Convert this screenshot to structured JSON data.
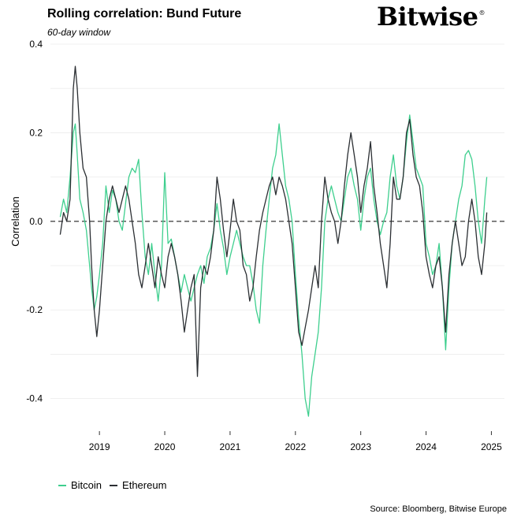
{
  "header": {
    "title": "Rolling correlation: Bund Future",
    "subtitle": "60-day window",
    "brand": "Bitwise",
    "brand_mark": "®"
  },
  "footer": {
    "source": "Source: Bloomberg, Bitwise Europe"
  },
  "colors": {
    "bitcoin": "#3ecf8e",
    "ethereum": "#2b2f33",
    "grid": "#ececec",
    "zero_line": "#222222"
  },
  "chart_data": {
    "type": "line",
    "title": "Rolling correlation: Bund Future",
    "subtitle": "60-day window",
    "ylabel": "Correlation",
    "xlabel": "",
    "ylim": [
      -0.47,
      0.4
    ],
    "xlim": [
      2018.25,
      2025.2
    ],
    "yticks": [
      0.4,
      0.2,
      0.0,
      -0.2,
      -0.4
    ],
    "ytick_labels": [
      "0.4",
      "0.2",
      "0.0",
      "-0.2",
      "-0.4"
    ],
    "xticks": [
      2019,
      2020,
      2021,
      2022,
      2023,
      2024,
      2025
    ],
    "xtick_labels": [
      "2019",
      "2020",
      "2021",
      "2022",
      "2023",
      "2024",
      "2025"
    ],
    "zero_line": true,
    "grid": true,
    "legend": "bottom-left",
    "series": [
      {
        "name": "Bitcoin",
        "color": "#3ecf8e",
        "x": [
          2018.4,
          2018.45,
          2018.5,
          2018.55,
          2018.6,
          2018.63,
          2018.66,
          2018.7,
          2018.75,
          2018.8,
          2018.85,
          2018.88,
          2018.92,
          2018.96,
          2019.0,
          2019.05,
          2019.1,
          2019.15,
          2019.2,
          2019.25,
          2019.3,
          2019.35,
          2019.4,
          2019.45,
          2019.5,
          2019.55,
          2019.6,
          2019.65,
          2019.7,
          2019.75,
          2019.8,
          2019.85,
          2019.9,
          2019.95,
          2020.0,
          2020.05,
          2020.1,
          2020.15,
          2020.2,
          2020.25,
          2020.3,
          2020.35,
          2020.4,
          2020.45,
          2020.5,
          2020.55,
          2020.6,
          2020.65,
          2020.7,
          2020.75,
          2020.8,
          2020.85,
          2020.9,
          2020.95,
          2021.0,
          2021.05,
          2021.1,
          2021.15,
          2021.2,
          2021.25,
          2021.3,
          2021.35,
          2021.4,
          2021.45,
          2021.5,
          2021.55,
          2021.6,
          2021.65,
          2021.7,
          2021.75,
          2021.8,
          2021.85,
          2021.9,
          2021.95,
          2022.0,
          2022.05,
          2022.1,
          2022.15,
          2022.2,
          2022.25,
          2022.3,
          2022.35,
          2022.4,
          2022.45,
          2022.5,
          2022.55,
          2022.6,
          2022.65,
          2022.7,
          2022.75,
          2022.8,
          2022.85,
          2022.9,
          2022.95,
          2023.0,
          2023.05,
          2023.1,
          2023.15,
          2023.2,
          2023.25,
          2023.3,
          2023.35,
          2023.4,
          2023.45,
          2023.5,
          2023.55,
          2023.6,
          2023.65,
          2023.7,
          2023.75,
          2023.8,
          2023.85,
          2023.9,
          2023.95,
          2024.0,
          2024.05,
          2024.1,
          2024.15,
          2024.2,
          2024.25,
          2024.3,
          2024.35,
          2024.4,
          2024.45,
          2024.5,
          2024.55,
          2024.6,
          2024.65,
          2024.7,
          2024.75,
          2024.8,
          2024.85,
          2024.9,
          2024.93
        ],
        "y": [
          0.01,
          0.05,
          0.02,
          0.1,
          0.2,
          0.22,
          0.15,
          0.05,
          0.02,
          -0.02,
          -0.1,
          -0.15,
          -0.2,
          -0.17,
          -0.12,
          -0.05,
          0.08,
          0.02,
          0.07,
          0.05,
          0.0,
          -0.02,
          0.04,
          0.1,
          0.12,
          0.11,
          0.14,
          0.02,
          -0.08,
          -0.12,
          -0.05,
          -0.12,
          -0.18,
          -0.1,
          0.11,
          -0.05,
          -0.04,
          -0.08,
          -0.12,
          -0.16,
          -0.12,
          -0.15,
          -0.18,
          -0.15,
          -0.12,
          -0.1,
          -0.14,
          -0.08,
          -0.06,
          -0.02,
          0.04,
          -0.02,
          -0.06,
          -0.12,
          -0.08,
          -0.05,
          -0.02,
          -0.05,
          -0.08,
          -0.1,
          -0.1,
          -0.14,
          -0.2,
          -0.23,
          -0.1,
          -0.02,
          0.05,
          0.12,
          0.15,
          0.22,
          0.15,
          0.08,
          0.05,
          0.0,
          -0.12,
          -0.22,
          -0.3,
          -0.4,
          -0.44,
          -0.35,
          -0.3,
          -0.25,
          -0.15,
          0.0,
          0.05,
          0.08,
          0.05,
          0.02,
          0.0,
          0.05,
          0.1,
          0.12,
          0.08,
          0.05,
          -0.02,
          0.05,
          0.1,
          0.12,
          0.05,
          0.0,
          -0.03,
          0.0,
          0.02,
          0.1,
          0.15,
          0.08,
          0.05,
          0.1,
          0.18,
          0.24,
          0.18,
          0.12,
          0.1,
          0.08,
          -0.05,
          -0.08,
          -0.12,
          -0.1,
          -0.05,
          -0.15,
          -0.29,
          -0.15,
          -0.05,
          0.0,
          0.05,
          0.08,
          0.15,
          0.16,
          0.14,
          0.08,
          0.0,
          -0.05,
          0.05,
          0.1
        ]
      },
      {
        "name": "Ethereum",
        "color": "#2b2f33",
        "x": [
          2018.4,
          2018.45,
          2018.5,
          2018.55,
          2018.6,
          2018.63,
          2018.66,
          2018.7,
          2018.75,
          2018.8,
          2018.85,
          2018.88,
          2018.92,
          2018.96,
          2019.0,
          2019.05,
          2019.1,
          2019.15,
          2019.2,
          2019.25,
          2019.3,
          2019.35,
          2019.4,
          2019.45,
          2019.5,
          2019.55,
          2019.6,
          2019.65,
          2019.7,
          2019.75,
          2019.8,
          2019.85,
          2019.9,
          2019.95,
          2020.0,
          2020.05,
          2020.1,
          2020.15,
          2020.2,
          2020.25,
          2020.3,
          2020.35,
          2020.4,
          2020.45,
          2020.5,
          2020.55,
          2020.6,
          2020.65,
          2020.7,
          2020.75,
          2020.8,
          2020.85,
          2020.9,
          2020.95,
          2021.0,
          2021.05,
          2021.1,
          2021.15,
          2021.2,
          2021.25,
          2021.3,
          2021.35,
          2021.4,
          2021.45,
          2021.5,
          2021.55,
          2021.6,
          2021.65,
          2021.7,
          2021.75,
          2021.8,
          2021.85,
          2021.9,
          2021.95,
          2022.0,
          2022.05,
          2022.1,
          2022.15,
          2022.2,
          2022.25,
          2022.3,
          2022.35,
          2022.4,
          2022.45,
          2022.5,
          2022.55,
          2022.6,
          2022.65,
          2022.7,
          2022.75,
          2022.8,
          2022.85,
          2022.9,
          2022.95,
          2023.0,
          2023.05,
          2023.1,
          2023.15,
          2023.2,
          2023.25,
          2023.3,
          2023.35,
          2023.4,
          2023.45,
          2023.5,
          2023.55,
          2023.6,
          2023.65,
          2023.7,
          2023.75,
          2023.8,
          2023.85,
          2023.9,
          2023.95,
          2024.0,
          2024.05,
          2024.1,
          2024.15,
          2024.2,
          2024.25,
          2024.3,
          2024.35,
          2024.4,
          2024.45,
          2024.5,
          2024.55,
          2024.6,
          2024.65,
          2024.7,
          2024.75,
          2024.8,
          2024.85,
          2024.9,
          2024.93
        ],
        "y": [
          -0.03,
          0.02,
          0.0,
          0.05,
          0.3,
          0.35,
          0.3,
          0.2,
          0.12,
          0.1,
          0.0,
          -0.1,
          -0.2,
          -0.26,
          -0.2,
          -0.1,
          0.0,
          0.05,
          0.08,
          0.05,
          0.02,
          0.05,
          0.08,
          0.05,
          0.0,
          -0.05,
          -0.12,
          -0.15,
          -0.1,
          -0.05,
          -0.1,
          -0.15,
          -0.08,
          -0.12,
          -0.15,
          -0.08,
          -0.05,
          -0.08,
          -0.12,
          -0.18,
          -0.25,
          -0.2,
          -0.15,
          -0.12,
          -0.35,
          -0.15,
          -0.1,
          -0.12,
          -0.08,
          -0.02,
          0.1,
          0.05,
          -0.02,
          -0.08,
          -0.02,
          0.05,
          0.0,
          -0.02,
          -0.1,
          -0.12,
          -0.18,
          -0.15,
          -0.08,
          -0.02,
          0.02,
          0.05,
          0.08,
          0.1,
          0.06,
          0.1,
          0.08,
          0.05,
          0.0,
          -0.05,
          -0.15,
          -0.25,
          -0.28,
          -0.24,
          -0.2,
          -0.15,
          -0.1,
          -0.15,
          0.0,
          0.1,
          0.05,
          0.02,
          0.0,
          -0.05,
          0.0,
          0.08,
          0.15,
          0.2,
          0.15,
          0.1,
          0.02,
          0.08,
          0.12,
          0.18,
          0.08,
          0.02,
          -0.05,
          -0.1,
          -0.15,
          -0.05,
          0.1,
          0.05,
          0.05,
          0.1,
          0.2,
          0.23,
          0.15,
          0.1,
          0.08,
          0.02,
          -0.08,
          -0.12,
          -0.15,
          -0.1,
          -0.08,
          -0.15,
          -0.25,
          -0.12,
          -0.05,
          0.0,
          -0.05,
          -0.1,
          -0.08,
          0.0,
          0.05,
          0.0,
          -0.08,
          -0.12,
          -0.05,
          0.02
        ]
      }
    ]
  }
}
